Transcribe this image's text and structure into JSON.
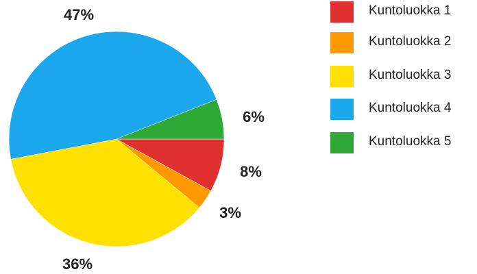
{
  "chart_data": {
    "type": "pie",
    "title": "",
    "slices": [
      {
        "name": "Kuntoluokka 1",
        "value": 8,
        "label": "8%",
        "color": "#e03030"
      },
      {
        "name": "Kuntoluokka 2",
        "value": 3,
        "label": "3%",
        "color": "#ff9900"
      },
      {
        "name": "Kuntoluokka 3",
        "value": 36,
        "label": "36%",
        "color": "#ffe000"
      },
      {
        "name": "Kuntoluokka 4",
        "value": 47,
        "label": "47%",
        "color": "#1aa7ec"
      },
      {
        "name": "Kuntoluokka 5",
        "value": 6,
        "label": "6%",
        "color": "#2ea836"
      }
    ],
    "legend_position": "right"
  }
}
